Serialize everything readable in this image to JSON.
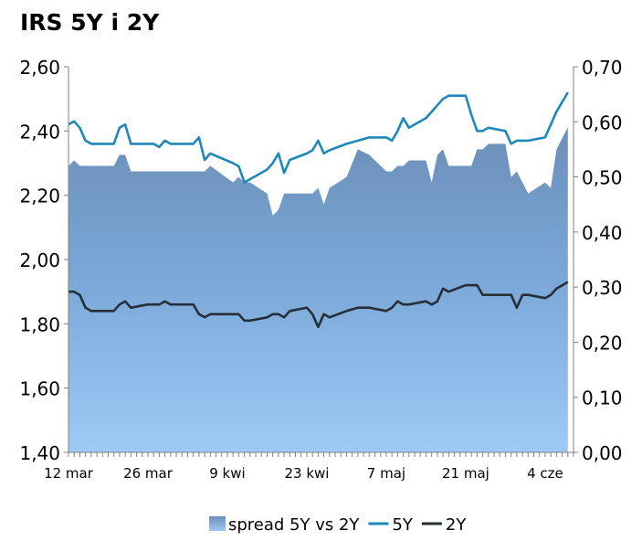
{
  "chart_data": {
    "type": "area",
    "title": "IRS 5Y i 2Y",
    "x_dates": [
      "2012-03-12",
      "2012-03-13",
      "2012-03-14",
      "2012-03-15",
      "2012-03-16",
      "2012-03-19",
      "2012-03-20",
      "2012-03-21",
      "2012-03-22",
      "2012-03-23",
      "2012-03-26",
      "2012-03-27",
      "2012-03-28",
      "2012-03-29",
      "2012-03-30",
      "2012-04-02",
      "2012-04-03",
      "2012-04-04",
      "2012-04-05",
      "2012-04-06",
      "2012-04-10",
      "2012-04-11",
      "2012-04-12",
      "2012-04-13",
      "2012-04-16",
      "2012-04-17",
      "2012-04-18",
      "2012-04-19",
      "2012-04-20",
      "2012-04-23",
      "2012-04-24",
      "2012-04-25",
      "2012-04-26",
      "2012-04-27",
      "2012-04-30",
      "2012-05-02",
      "2012-05-04",
      "2012-05-07",
      "2012-05-08",
      "2012-05-09",
      "2012-05-10",
      "2012-05-11",
      "2012-05-14",
      "2012-05-15",
      "2012-05-16",
      "2012-05-17",
      "2012-05-18",
      "2012-05-21",
      "2012-05-22",
      "2012-05-23",
      "2012-05-24",
      "2012-05-25",
      "2012-05-28",
      "2012-05-29",
      "2012-05-30",
      "2012-05-31",
      "2012-06-01",
      "2012-06-04",
      "2012-06-05",
      "2012-06-06",
      "2012-06-08"
    ],
    "x_tick_labels": [
      "12 mar",
      "26 mar",
      "9 kwi",
      "23 kwi",
      "7 maj",
      "21 maj",
      "4 cze"
    ],
    "x_tick_dates": [
      "2012-03-12",
      "2012-03-26",
      "2012-04-09",
      "2012-04-23",
      "2012-05-07",
      "2012-05-21",
      "2012-06-04"
    ],
    "xlim": [
      "2012-03-12",
      "2012-06-09"
    ],
    "left_axis": {
      "ylim": [
        1.4,
        2.6
      ],
      "ticks": [
        "1,40",
        "1,60",
        "1,80",
        "2,00",
        "2,20",
        "2,40",
        "2,60"
      ]
    },
    "right_axis": {
      "ylim": [
        0.0,
        0.7
      ],
      "ticks": [
        "0,00",
        "0,10",
        "0,20",
        "0,30",
        "0,40",
        "0,50",
        "0,60",
        "0,70"
      ]
    },
    "grid": false,
    "legend_position": "bottom",
    "series": [
      {
        "name": "spread 5Y vs 2Y",
        "axis": "right",
        "kind": "area",
        "color": "#6a90bb",
        "values": [
          0.52,
          0.53,
          0.52,
          0.52,
          0.52,
          0.52,
          0.52,
          0.54,
          0.54,
          0.51,
          0.51,
          0.51,
          0.51,
          0.51,
          0.51,
          0.51,
          0.51,
          0.51,
          0.51,
          0.52,
          0.49,
          0.5,
          0.49,
          0.49,
          0.47,
          0.43,
          0.44,
          0.47,
          0.47,
          0.47,
          0.47,
          0.48,
          0.45,
          0.48,
          0.5,
          0.55,
          0.54,
          0.51,
          0.51,
          0.52,
          0.52,
          0.53,
          0.53,
          0.49,
          0.54,
          0.55,
          0.52,
          0.52,
          0.52,
          0.55,
          0.55,
          0.56,
          0.56,
          0.5,
          0.51,
          0.49,
          0.47,
          0.49,
          0.48,
          0.55,
          0.59
        ]
      },
      {
        "name": "5Y",
        "axis": "left",
        "kind": "line",
        "color": "#1f88b8",
        "values": [
          2.42,
          2.43,
          2.41,
          2.37,
          2.36,
          2.36,
          2.36,
          2.41,
          2.42,
          2.36,
          2.36,
          2.36,
          2.35,
          2.37,
          2.36,
          2.36,
          2.36,
          2.38,
          2.31,
          2.33,
          2.3,
          2.29,
          2.24,
          2.25,
          2.28,
          2.3,
          2.33,
          2.27,
          2.31,
          2.33,
          2.34,
          2.37,
          2.33,
          2.34,
          2.36,
          2.37,
          2.38,
          2.38,
          2.37,
          2.4,
          2.44,
          2.41,
          2.44,
          2.46,
          2.48,
          2.5,
          2.51,
          2.51,
          2.45,
          2.4,
          2.4,
          2.41,
          2.4,
          2.36,
          2.37,
          2.37,
          2.37,
          2.38,
          2.42,
          2.46,
          2.52
        ]
      },
      {
        "name": "2Y",
        "axis": "left",
        "kind": "line",
        "color": "#262f38",
        "values": [
          1.9,
          1.9,
          1.89,
          1.85,
          1.84,
          1.84,
          1.84,
          1.86,
          1.87,
          1.85,
          1.86,
          1.86,
          1.86,
          1.87,
          1.86,
          1.86,
          1.86,
          1.83,
          1.82,
          1.83,
          1.83,
          1.83,
          1.81,
          1.81,
          1.82,
          1.83,
          1.83,
          1.82,
          1.84,
          1.85,
          1.83,
          1.79,
          1.83,
          1.82,
          1.84,
          1.85,
          1.85,
          1.84,
          1.85,
          1.87,
          1.86,
          1.86,
          1.87,
          1.86,
          1.87,
          1.91,
          1.9,
          1.92,
          1.92,
          1.92,
          1.89,
          1.89,
          1.89,
          1.89,
          1.85,
          1.89,
          1.89,
          1.88,
          1.89,
          1.91,
          1.93
        ]
      }
    ]
  }
}
